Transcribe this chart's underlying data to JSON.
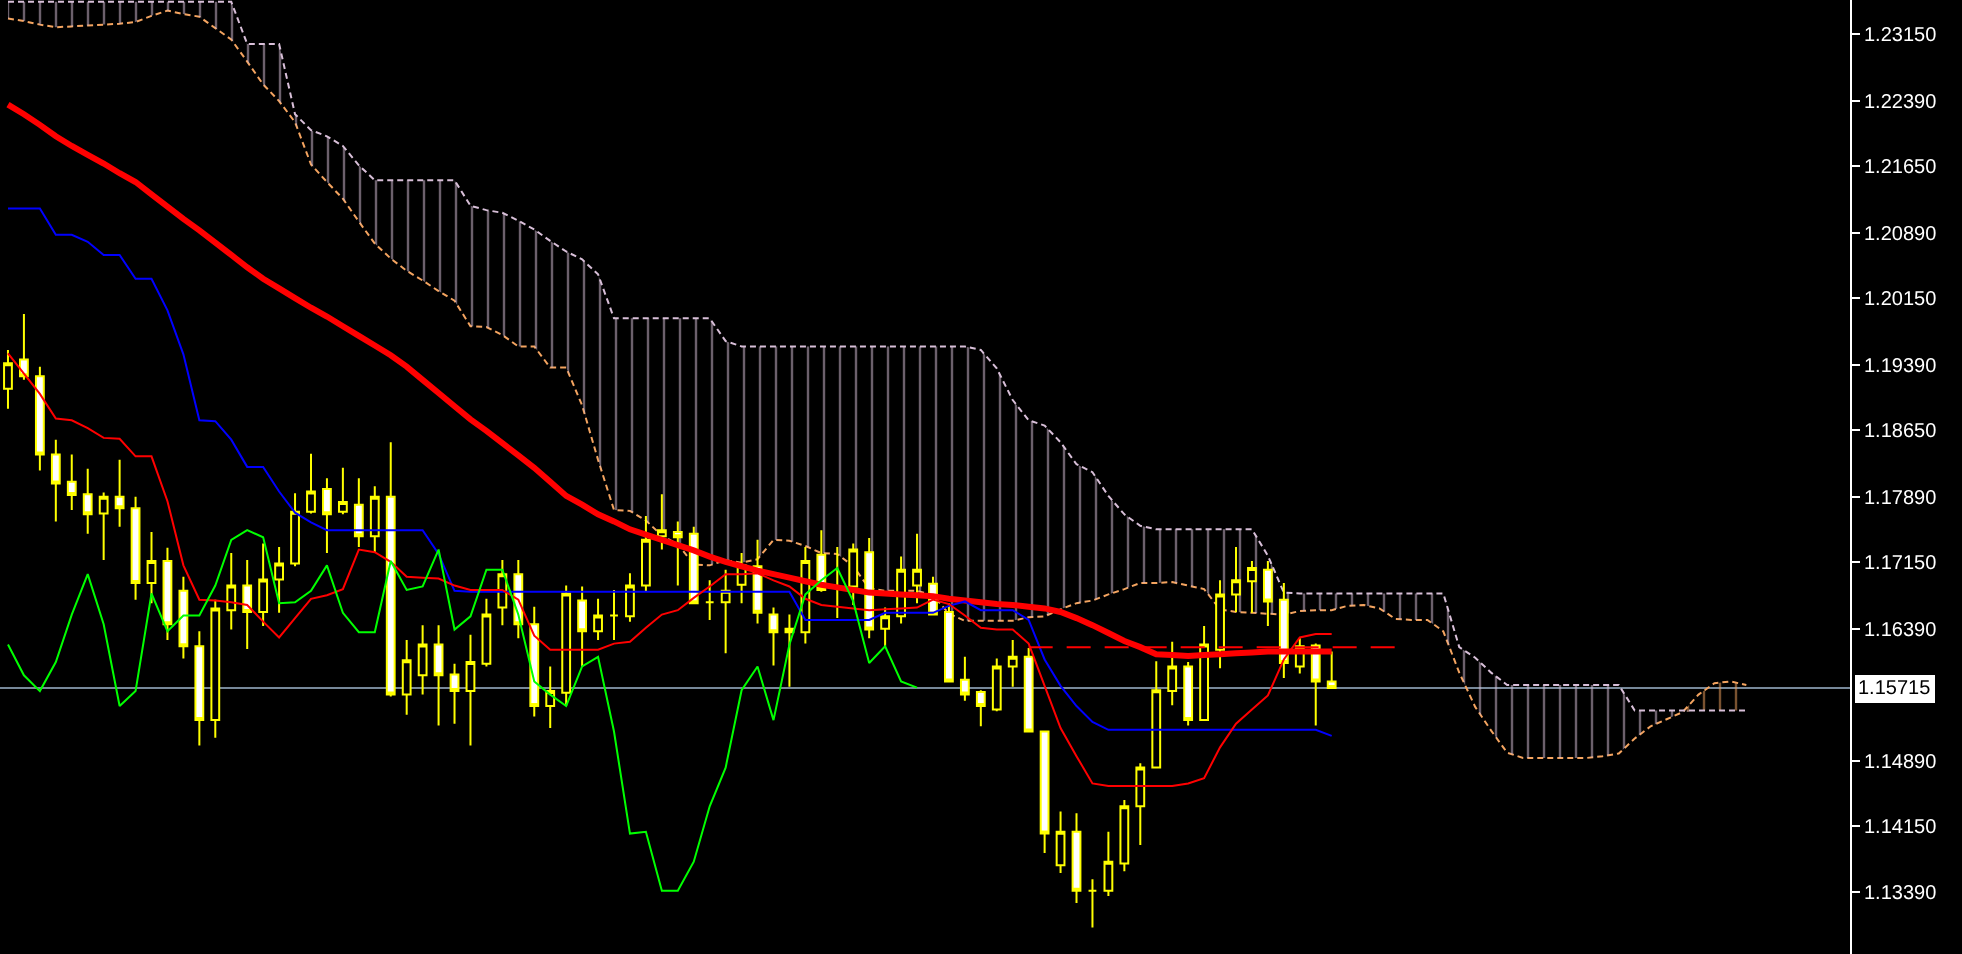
{
  "chart_data": {
    "type": "candlestick",
    "color": "#ffff00",
    "categories": [
      null,
      null,
      null,
      null,
      null,
      null,
      null,
      null,
      null,
      null,
      null,
      null,
      null,
      null,
      null,
      null,
      null,
      null,
      null,
      null,
      null,
      null,
      null,
      null,
      null,
      null,
      null,
      null,
      null,
      null,
      null,
      null,
      null,
      null,
      null,
      null,
      null,
      null,
      null,
      null,
      null,
      null,
      null,
      null,
      null,
      null,
      null,
      null,
      null,
      null,
      null,
      null,
      null,
      null,
      null,
      null,
      null,
      null,
      null,
      null,
      null,
      null,
      null,
      null,
      null,
      null,
      null,
      null,
      null,
      null,
      null,
      null,
      null,
      null,
      null,
      null,
      null,
      null,
      null,
      null,
      null,
      null,
      null,
      null,
      null,
      null,
      null,
      null,
      null,
      null,
      null,
      null,
      null,
      null,
      null,
      null,
      null,
      null,
      null,
      null,
      null,
      null,
      null,
      null,
      null,
      null,
      null,
      null,
      null,
      null
    ],
    "ohlc": [
      [
        1.1912,
        1.1956,
        1.1889,
        1.1941
      ],
      [
        1.1945,
        1.1997,
        1.1922,
        1.1926
      ],
      [
        1.1926,
        1.1937,
        1.1819,
        1.1837
      ],
      [
        1.1837,
        1.1854,
        1.1761,
        1.1804
      ],
      [
        1.1806,
        1.1837,
        1.1774,
        1.1791
      ],
      [
        1.1792,
        1.1821,
        1.1747,
        1.1769
      ],
      [
        1.177,
        1.1794,
        1.1717,
        1.1789
      ],
      [
        1.1789,
        1.1831,
        1.1755,
        1.1776
      ],
      [
        1.1776,
        1.1789,
        1.1672,
        1.1691
      ],
      [
        1.1691,
        1.1749,
        1.1668,
        1.1716
      ],
      [
        1.1716,
        1.1731,
        1.1626,
        1.1644
      ],
      [
        1.1682,
        1.1698,
        1.1605,
        1.1619
      ],
      [
        1.1619,
        1.1636,
        1.1506,
        1.1535
      ],
      [
        1.1535,
        1.1672,
        1.1515,
        1.1662
      ],
      [
        1.166,
        1.1725,
        1.1638,
        1.1688
      ],
      [
        1.1688,
        1.1717,
        1.1616,
        1.1658
      ],
      [
        1.1658,
        1.1736,
        1.1642,
        1.1695
      ],
      [
        1.1695,
        1.1732,
        1.1657,
        1.1713
      ],
      [
        1.1713,
        1.1793,
        1.171,
        1.1772
      ],
      [
        1.1772,
        1.1838,
        1.177,
        1.1795
      ],
      [
        1.1798,
        1.181,
        1.1725,
        1.1769
      ],
      [
        1.1772,
        1.1822,
        1.1769,
        1.1783
      ],
      [
        1.178,
        1.181,
        1.1732,
        1.1744
      ],
      [
        1.1744,
        1.1801,
        1.1726,
        1.1789
      ],
      [
        1.1789,
        1.1851,
        1.1562,
        1.1564
      ],
      [
        1.1564,
        1.1626,
        1.1541,
        1.1603
      ],
      [
        1.1586,
        1.1643,
        1.1564,
        1.1621
      ],
      [
        1.1621,
        1.1643,
        1.1529,
        1.1586
      ],
      [
        1.1587,
        1.1599,
        1.1531,
        1.1568
      ],
      [
        1.1568,
        1.1632,
        1.1506,
        1.1601
      ],
      [
        1.1599,
        1.1673,
        1.1596,
        1.1655
      ],
      [
        1.1663,
        1.1717,
        1.1643,
        1.1701
      ],
      [
        1.1701,
        1.1717,
        1.1628,
        1.1644
      ],
      [
        1.1644,
        1.1664,
        1.1539,
        1.1551
      ],
      [
        1.1551,
        1.1596,
        1.1526,
        1.1568
      ],
      [
        1.1566,
        1.1688,
        1.1551,
        1.1679
      ],
      [
        1.1671,
        1.1687,
        1.1596,
        1.1636
      ],
      [
        1.1636,
        1.1673,
        1.1626,
        1.1654
      ],
      [
        1.1654,
        1.1683,
        1.1626,
        1.1654
      ],
      [
        1.1653,
        1.1702,
        1.1647,
        1.1688
      ],
      [
        1.1688,
        1.1767,
        1.1681,
        1.174
      ],
      [
        1.1744,
        1.1792,
        1.1729,
        1.1751
      ],
      [
        1.1749,
        1.1761,
        1.1688,
        1.1743
      ],
      [
        1.1747,
        1.1755,
        1.1667,
        1.1668
      ],
      [
        1.1669,
        1.1694,
        1.1649,
        1.1669
      ],
      [
        1.1669,
        1.1706,
        1.1611,
        1.1682
      ],
      [
        1.1689,
        1.1725,
        1.1668,
        1.1711
      ],
      [
        1.171,
        1.174,
        1.1645,
        1.1657
      ],
      [
        1.1655,
        1.1663,
        1.1597,
        1.1635
      ],
      [
        1.1639,
        1.1655,
        1.1573,
        1.1635
      ],
      [
        1.1635,
        1.1732,
        1.1622,
        1.1716
      ],
      [
        1.1723,
        1.1751,
        1.1681,
        1.1683
      ],
      [
        1.1687,
        1.1732,
        1.1651,
        1.1687
      ],
      [
        1.1687,
        1.1736,
        1.1666,
        1.1729
      ],
      [
        1.1726,
        1.1742,
        1.1628,
        1.1638
      ],
      [
        1.1639,
        1.1663,
        1.1619,
        1.1653
      ],
      [
        1.1653,
        1.1721,
        1.1645,
        1.1706
      ],
      [
        1.1688,
        1.1747,
        1.1668,
        1.1706
      ],
      [
        1.169,
        1.1698,
        1.1654,
        1.1655
      ],
      [
        1.1658,
        1.1668,
        1.1578,
        1.1579
      ],
      [
        1.1581,
        1.1607,
        1.1557,
        1.1564
      ],
      [
        1.1567,
        1.1569,
        1.1528,
        1.1551
      ],
      [
        1.1547,
        1.1605,
        1.1545,
        1.1596
      ],
      [
        1.1596,
        1.1626,
        1.1573,
        1.1607
      ],
      [
        1.1607,
        1.1617,
        1.1521,
        1.1522
      ],
      [
        1.1522,
        1.1522,
        1.1384,
        1.1406
      ],
      [
        1.137,
        1.1431,
        1.1361,
        1.1408
      ],
      [
        1.1408,
        1.1429,
        1.1327,
        1.1341
      ],
      [
        1.1341,
        1.1354,
        1.1299,
        1.1341
      ],
      [
        1.1341,
        1.1408,
        1.1335,
        1.1374
      ],
      [
        1.1372,
        1.1444,
        1.1363,
        1.1437
      ],
      [
        1.1437,
        1.1486,
        1.1393,
        1.1481
      ],
      [
        1.1481,
        1.1602,
        1.148,
        1.1569
      ],
      [
        1.1568,
        1.1624,
        1.1552,
        1.1596
      ],
      [
        1.1596,
        1.1601,
        1.1529,
        1.1535
      ],
      [
        1.1535,
        1.1642,
        1.1534,
        1.1621
      ],
      [
        1.1615,
        1.1694,
        1.1594,
        1.1678
      ],
      [
        1.1678,
        1.1732,
        1.1658,
        1.1694
      ],
      [
        1.1693,
        1.1716,
        1.1657,
        1.1708
      ],
      [
        1.1706,
        1.1716,
        1.1642,
        1.167
      ],
      [
        1.1672,
        1.1691,
        1.1583,
        1.16
      ],
      [
        1.1596,
        1.1628,
        1.1588,
        1.1619
      ],
      [
        1.162,
        1.1622,
        1.1529,
        1.1579
      ],
      [
        1.1579,
        1.1613,
        1.1571,
        1.15715
      ],
      null,
      null,
      null,
      null,
      null,
      null,
      null,
      null,
      null,
      null,
      null,
      null,
      null,
      null,
      null,
      null,
      null,
      null,
      null,
      null,
      null,
      null,
      null,
      null,
      null,
      null
    ],
    "series": [
      {
        "type": "area",
        "color": "#f4a460",
        "line_style": "dotted",
        "values": [
          1.2333,
          1.233,
          1.2326,
          1.2323,
          1.2324,
          1.2325,
          1.2326,
          1.2327,
          1.2329,
          1.2336,
          1.2342,
          1.2338,
          1.2335,
          1.2322,
          1.2309,
          1.2284,
          1.2258,
          1.2239,
          1.2215,
          1.2167,
          1.2147,
          1.2128,
          1.2102,
          1.2077,
          1.206,
          1.2046,
          1.2035,
          1.2023,
          1.2012,
          1.1983,
          1.1982,
          1.1973,
          1.196,
          1.196,
          1.1936,
          1.1936,
          1.1893,
          1.1831,
          1.1774,
          1.1773,
          1.1762,
          1.1745,
          1.1735,
          1.1712,
          1.1711,
          1.1717,
          1.1714,
          1.1718,
          1.174,
          1.1739,
          1.1733,
          1.1725,
          1.1724,
          1.171,
          1.1685,
          1.1682,
          1.1682,
          1.1682,
          1.1677,
          1.1656,
          1.1648,
          1.1648,
          1.1648,
          1.1648,
          1.1652,
          1.1653,
          1.1661,
          1.1668,
          1.1671,
          1.1678,
          1.1684,
          1.1691,
          1.1691,
          1.1692,
          1.1688,
          1.1684,
          1.1661,
          1.1658,
          1.1657,
          1.1656,
          1.1655,
          1.1659,
          1.166,
          1.166,
          1.1665,
          1.1666,
          1.1662,
          1.165,
          1.1649,
          1.1649,
          1.1636,
          1.1589,
          1.155,
          1.1523,
          1.1498,
          1.1492,
          1.1492,
          1.1492,
          1.1492,
          1.1492,
          1.1494,
          1.1497,
          1.1514,
          1.1528,
          1.1536,
          1.1544,
          1.1564,
          1.1577,
          1.1579,
          1.1575
        ]
      },
      {
        "type": "area",
        "color": "#d8bfd8",
        "line_style": "dotted",
        "values": [
          1.2352,
          1.2352,
          1.2352,
          1.2352,
          1.2352,
          1.2352,
          1.2352,
          1.2352,
          1.2352,
          1.2352,
          1.2352,
          1.2352,
          1.2352,
          1.2352,
          1.2352,
          1.2304,
          1.2304,
          1.2304,
          1.2224,
          1.2206,
          1.2199,
          1.2188,
          1.2166,
          1.2149,
          1.2149,
          1.2149,
          1.2149,
          1.2149,
          1.2149,
          1.212,
          1.2115,
          1.2112,
          1.2103,
          1.2093,
          1.208,
          1.2068,
          1.2059,
          1.2042,
          1.1992,
          1.1992,
          1.1992,
          1.1992,
          1.1992,
          1.1992,
          1.1992,
          1.1966,
          1.196,
          1.196,
          1.196,
          1.196,
          1.196,
          1.196,
          1.196,
          1.196,
          1.196,
          1.196,
          1.196,
          1.196,
          1.196,
          1.196,
          1.196,
          1.1956,
          1.1935,
          1.1899,
          1.1876,
          1.187,
          1.1851,
          1.1826,
          1.1817,
          1.179,
          1.1769,
          1.1756,
          1.1752,
          1.1752,
          1.1752,
          1.1752,
          1.1752,
          1.1752,
          1.1752,
          1.1722,
          1.168,
          1.1679,
          1.1679,
          1.1679,
          1.1679,
          1.1679,
          1.1679,
          1.1679,
          1.1679,
          1.1679,
          1.1679,
          1.1618,
          1.1606,
          1.1589,
          1.1575,
          1.1575,
          1.1575,
          1.1575,
          1.1575,
          1.1575,
          1.1575,
          1.1575,
          1.1546,
          1.1546,
          1.1546,
          1.1546,
          1.1546,
          1.1546,
          1.1546,
          1.1546
        ]
      },
      {
        "type": "line",
        "color": "#ff0000",
        "values": [
          1.2235,
          1.2224,
          1.2212,
          1.2199,
          1.2188,
          1.2178,
          1.2168,
          1.2157,
          1.2147,
          1.2133,
          1.2119,
          1.2105,
          1.2092,
          1.2078,
          1.2064,
          1.205,
          1.2037,
          1.2026,
          1.2015,
          1.2004,
          1.1994,
          1.1983,
          1.1972,
          1.1961,
          1.195,
          1.1937,
          1.1922,
          1.1907,
          1.1892,
          1.1877,
          1.1864,
          1.185,
          1.1836,
          1.1822,
          1.1806,
          1.179,
          1.178,
          1.1769,
          1.1761,
          1.1752,
          1.1746,
          1.174,
          1.1734,
          1.1728,
          1.1721,
          1.1715,
          1.171,
          1.1705,
          1.1701,
          1.1697,
          1.1693,
          1.1689,
          1.1686,
          1.1683,
          1.168,
          1.1679,
          1.1678,
          1.1677,
          1.1676,
          1.1673,
          1.1671,
          1.1669,
          1.1667,
          1.1666,
          1.1664,
          1.1662,
          1.1658,
          1.1651,
          1.1643,
          1.1634,
          1.1625,
          1.1618,
          1.161,
          1.1609,
          1.1608,
          1.1609,
          1.161,
          1.1611,
          1.1612,
          1.1613,
          1.1613,
          1.1613,
          1.1613,
          1.1613,
          null,
          null,
          null,
          null,
          null,
          null,
          null,
          null,
          null,
          null,
          null,
          null,
          null,
          null,
          null,
          null,
          null,
          null,
          null,
          null,
          null,
          null,
          null,
          null,
          null,
          null
        ]
      },
      {
        "type": "line",
        "color": "#0000ff",
        "values": [
          1.2117,
          1.2117,
          1.2117,
          1.2087,
          1.2087,
          1.2079,
          1.2064,
          1.2064,
          1.2037,
          1.2037,
          1.2001,
          1.1951,
          1.1876,
          1.1875,
          1.1854,
          1.1823,
          1.1823,
          1.1795,
          1.1771,
          1.176,
          1.1751,
          1.1751,
          1.1751,
          1.1751,
          1.1751,
          1.1751,
          1.1751,
          1.1724,
          1.1682,
          1.1681,
          1.1681,
          1.1681,
          1.1681,
          1.1681,
          1.1681,
          1.1681,
          1.1681,
          1.1681,
          1.1681,
          1.1681,
          1.1681,
          1.1681,
          1.1681,
          1.1681,
          1.1681,
          1.1681,
          1.1681,
          1.1681,
          1.1681,
          1.1681,
          1.1649,
          1.1649,
          1.1649,
          1.1649,
          1.1649,
          1.1657,
          1.1657,
          1.1657,
          1.1657,
          1.1665,
          1.167,
          1.166,
          1.166,
          1.166,
          1.1649,
          1.1604,
          1.1574,
          1.1551,
          1.1533,
          1.1524,
          1.1524,
          1.1524,
          1.1524,
          1.1524,
          1.1524,
          1.1524,
          1.1524,
          1.1524,
          1.1524,
          1.1524,
          1.1524,
          1.1524,
          1.1524,
          1.1517,
          null,
          null,
          null,
          null,
          null,
          null,
          null,
          null,
          null,
          null,
          null,
          null,
          null,
          null,
          null,
          null,
          null,
          null,
          null,
          null,
          null,
          null,
          null,
          null,
          null,
          null
        ]
      },
      {
        "type": "line",
        "color": "#ff0000",
        "values": [
          1.1952,
          1.1929,
          1.1906,
          1.1878,
          1.1876,
          1.1867,
          1.1856,
          1.1855,
          1.1835,
          1.1835,
          1.1784,
          1.1711,
          1.1672,
          1.1671,
          1.1669,
          1.1666,
          1.1647,
          1.1629,
          1.1651,
          1.1673,
          1.1677,
          1.1684,
          1.1729,
          1.1726,
          1.1715,
          1.1698,
          1.1697,
          1.1696,
          1.1688,
          1.1683,
          1.1683,
          1.1683,
          1.1672,
          1.1631,
          1.1615,
          1.1615,
          1.1615,
          1.1615,
          1.1622,
          1.1624,
          1.164,
          1.1655,
          1.166,
          1.1674,
          1.1687,
          1.1701,
          1.1701,
          1.1702,
          1.1694,
          1.1687,
          1.1673,
          1.1666,
          1.1664,
          1.1662,
          1.166,
          1.1661,
          1.1662,
          1.1663,
          1.1672,
          1.1667,
          1.1654,
          1.164,
          1.1638,
          1.1638,
          1.1622,
          1.1574,
          1.1526,
          1.1494,
          1.1463,
          1.146,
          1.146,
          1.146,
          1.146,
          1.146,
          1.1463,
          1.1469,
          1.1504,
          1.1531,
          1.1547,
          1.1563,
          1.1604,
          1.1629,
          1.1633,
          1.1633,
          null,
          null,
          null,
          null,
          null,
          null,
          null,
          null,
          null,
          null,
          null,
          null,
          null,
          null,
          null,
          null,
          null,
          null,
          null,
          null,
          null,
          null,
          null,
          null,
          null,
          null
        ]
      },
      {
        "type": "line",
        "color": "#00ff00",
        "values": [
          1.1621,
          1.1586,
          1.1568,
          1.1601,
          1.1655,
          1.1701,
          1.1644,
          1.1551,
          1.1568,
          1.1679,
          1.1636,
          1.1654,
          1.1654,
          1.1688,
          1.174,
          1.1751,
          1.1743,
          1.1668,
          1.1669,
          1.1682,
          1.1711,
          1.1657,
          1.1635,
          1.1635,
          1.1716,
          1.1683,
          1.1687,
          1.1729,
          1.1638,
          1.1653,
          1.1706,
          1.1706,
          1.1655,
          1.1579,
          1.1564,
          1.1551,
          1.1596,
          1.1607,
          1.1522,
          1.1406,
          1.1408,
          1.1341,
          1.1341,
          1.1374,
          1.1437,
          1.1481,
          1.1569,
          1.1596,
          1.1535,
          1.1621,
          1.1678,
          1.1694,
          1.1708,
          1.167,
          1.16,
          1.1619,
          1.1579,
          1.1572,
          null,
          null,
          null,
          null,
          null,
          null,
          null,
          null,
          null,
          null,
          null,
          null,
          null,
          null,
          null,
          null,
          null,
          null,
          null,
          null,
          null,
          null,
          null,
          null,
          null,
          null,
          null,
          null,
          null,
          null,
          null,
          null,
          null,
          null,
          null,
          null,
          null,
          null,
          null,
          null,
          null,
          null,
          null,
          null,
          null,
          null,
          null,
          null,
          null,
          null,
          null,
          null
        ]
      },
      {
        "type": "line",
        "color": "#ff0000",
        "line_style": "dashed",
        "values": [
          null,
          null,
          null,
          null,
          null,
          null,
          null,
          null,
          null,
          null,
          null,
          null,
          null,
          null,
          null,
          null,
          null,
          null,
          null,
          null,
          null,
          null,
          null,
          null,
          null,
          null,
          null,
          null,
          null,
          null,
          null,
          null,
          null,
          null,
          null,
          null,
          null,
          null,
          null,
          null,
          null,
          null,
          null,
          null,
          null,
          null,
          null,
          null,
          null,
          null,
          null,
          null,
          null,
          null,
          null,
          null,
          null,
          null,
          null,
          null,
          null,
          null,
          null,
          null,
          1.1618,
          1.1618,
          1.1618,
          1.1618,
          1.1618,
          1.1618,
          1.1618,
          1.1618,
          1.1618,
          1.1618,
          1.1618,
          1.1618,
          1.1618,
          1.1618,
          1.1618,
          1.1618,
          1.1618,
          1.1618,
          1.1618,
          1.1618,
          1.1618,
          1.1618,
          1.1618,
          1.1618,
          null,
          null,
          null,
          null,
          null,
          null,
          null,
          null,
          null,
          null,
          null,
          null,
          null,
          null,
          null,
          null,
          null,
          null,
          null,
          null,
          null,
          null
        ]
      }
    ],
    "ylim": [
      1.1269,
      1.2354
    ],
    "yticks": [
      {
        "value": 1.2315,
        "label": "1.23150"
      },
      {
        "value": 1.2239,
        "label": "1.22390"
      },
      {
        "value": 1.2165,
        "label": "1.21650"
      },
      {
        "value": 1.2089,
        "label": "1.20890"
      },
      {
        "value": 1.2015,
        "label": "1.20150"
      },
      {
        "value": 1.1939,
        "label": "1.19390"
      },
      {
        "value": 1.1865,
        "label": "1.18650"
      },
      {
        "value": 1.1789,
        "label": "1.17890"
      },
      {
        "value": 1.1715,
        "label": "1.17150"
      },
      {
        "value": 1.1639,
        "label": "1.16390"
      },
      {
        "value": 1.1489,
        "label": "1.14890"
      },
      {
        "value": 1.1415,
        "label": "1.14150"
      },
      {
        "value": 1.1339,
        "label": "1.13390"
      }
    ],
    "tick_labels": "y",
    "ref_lines": [
      {
        "axis": "y",
        "value": 1.15715,
        "label": "1.15715",
        "color": "#778899"
      }
    ]
  }
}
